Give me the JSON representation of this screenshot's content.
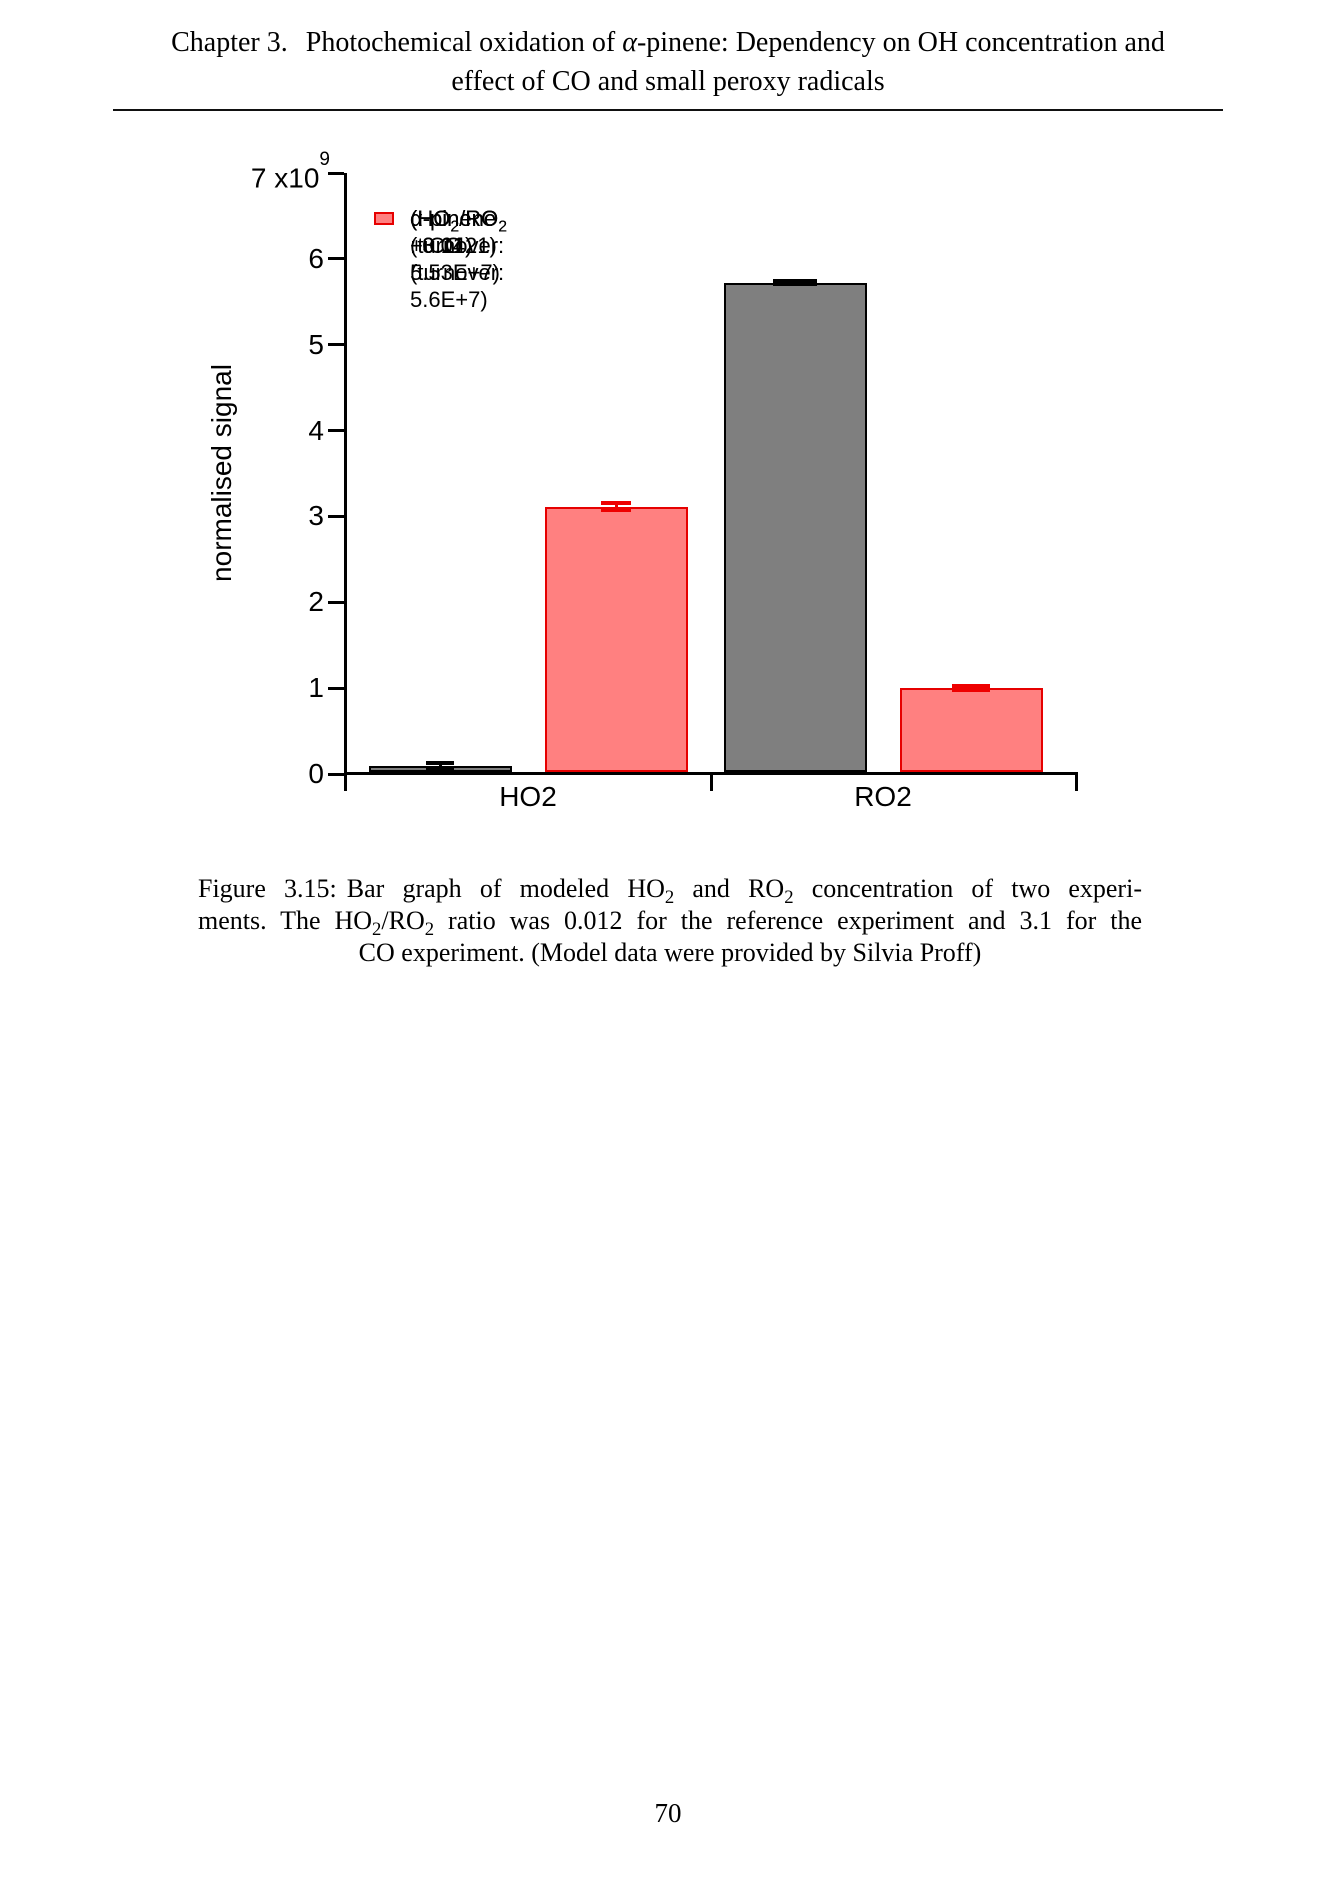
{
  "header": {
    "chapter": "Chapter 3.",
    "line1_pre": "Photochemical oxidation of ",
    "alpha": "α",
    "line1_post": "-pinene: Dependency on OH concentration and",
    "line2": "effect of CO and small peroxy radicals"
  },
  "chart_data": {
    "type": "bar",
    "title": "",
    "categories": [
      "HO2",
      "RO2"
    ],
    "series": [
      {
        "name": "α-pinene (turnover: 5.53E+7) (HO2/RO2 : 0.0121)",
        "values": [
          0.07,
          5.7
        ],
        "errors": [
          0.03,
          0.02
        ],
        "fill": "#7f7f7f",
        "edge": "#000000",
        "error_color": "#000000"
      },
      {
        "name": "α-pinene + CO (turnover: 5.6E+7) (HO2/RO2 : 3.14)",
        "values": [
          3.09,
          0.98
        ],
        "errors": [
          0.04,
          0.025
        ],
        "fill": "#ff8080",
        "edge": "#e60000",
        "error_color": "#ee0000"
      }
    ],
    "xlabel": "",
    "ylabel": "normalised signal",
    "ylim": [
      0,
      7
    ],
    "y_unit_multiplier": "x10^9",
    "y_top_label": {
      "text": "7 x10",
      "exponent": "9"
    },
    "y_tick_labels": [
      "0",
      "1",
      "2",
      "3",
      "4",
      "5",
      "6"
    ],
    "legend_position": "top-left",
    "grid": false
  },
  "legend": {
    "entries": [
      {
        "line1": "α-pinene (turnover: 5.53E+7)",
        "l2a": "(HO",
        "l2sub1": "2",
        "l2b": "/RO",
        "l2sub2": "2",
        "l2c": " : 0.0121)"
      },
      {
        "line1": "α-pinene + CO (turnover: 5.6E+7)",
        "l2a": "(HO",
        "l2sub1": "2",
        "l2b": "/RO",
        "l2sub2": "2",
        "l2c": " : 3.14)"
      }
    ]
  },
  "caption": {
    "fig_label": "Figure 3.15:",
    "l1a": "Bar graph of modeled HO",
    "l1s1": "2",
    "l1b": " and RO",
    "l1s2": "2",
    "l1c": " concentration of two experi-",
    "l2a": "ments. The HO",
    "l2s1": "2",
    "l2b": "/RO",
    "l2s2": "2",
    "l2c": " ratio was 0.012 for the reference experiment and 3.1 for the",
    "l3": "CO experiment. (Model data were provided by Silvia Proff)"
  },
  "page_number": "70"
}
